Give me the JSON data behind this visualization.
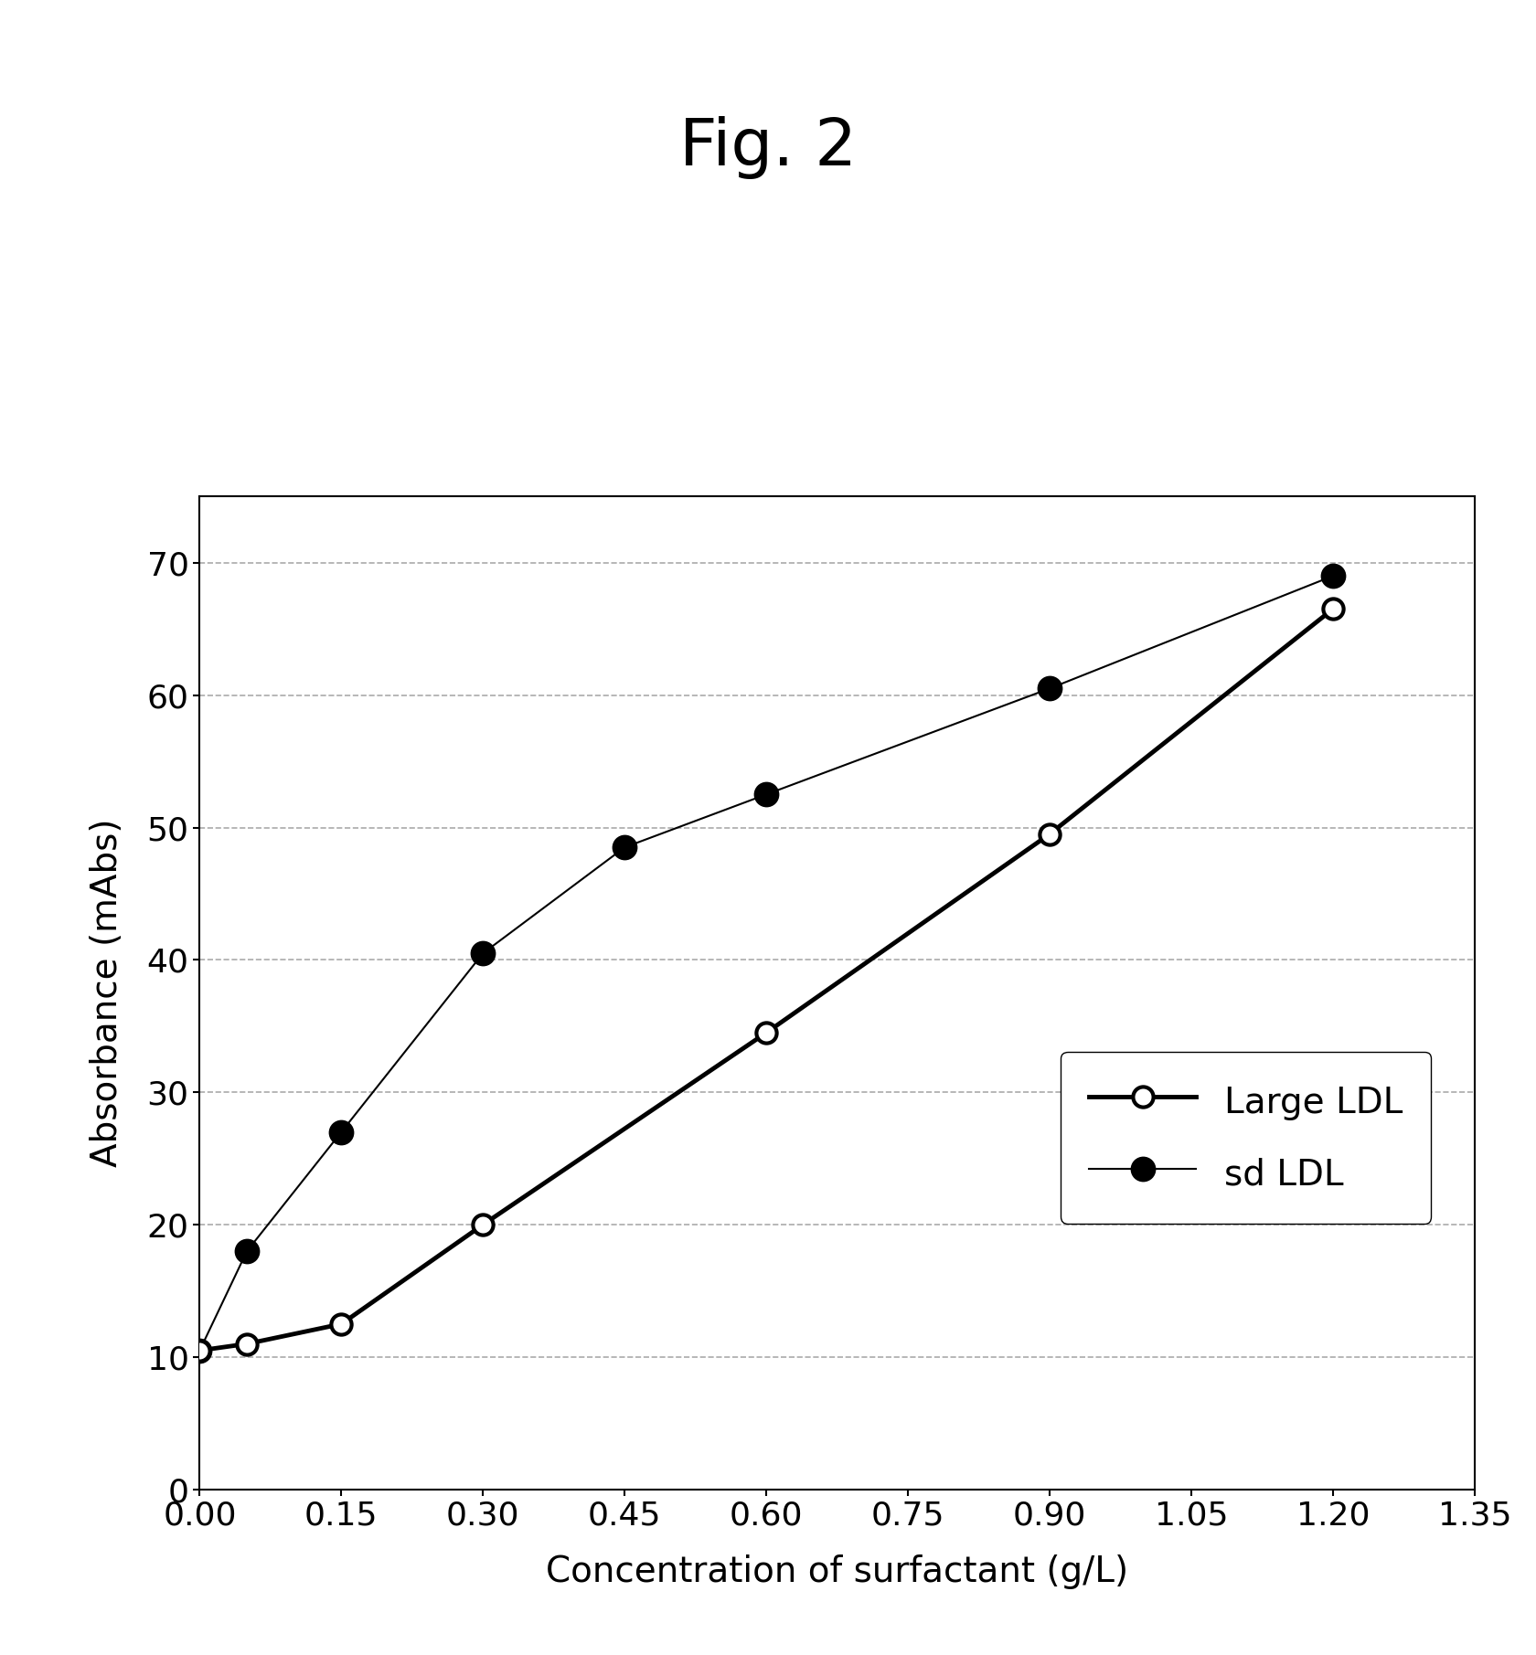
{
  "title": "Fig. 2",
  "xlabel": "Concentration of surfactant (g/L)",
  "ylabel": "Absorbance (mAbs)",
  "large_ldl_x": [
    0.0,
    0.05,
    0.15,
    0.3,
    0.6,
    0.9,
    1.2
  ],
  "large_ldl_y": [
    10.5,
    11.0,
    12.5,
    20.0,
    34.5,
    49.5,
    66.5
  ],
  "sd_ldl_x": [
    0.0,
    0.05,
    0.15,
    0.3,
    0.45,
    0.6,
    0.9,
    1.2
  ],
  "sd_ldl_y": [
    10.5,
    18.0,
    27.0,
    40.5,
    48.5,
    52.5,
    60.5,
    69.0
  ],
  "xlim": [
    0.0,
    1.35
  ],
  "ylim": [
    0,
    75
  ],
  "xticks": [
    0.0,
    0.15,
    0.3,
    0.45,
    0.6,
    0.75,
    0.9,
    1.05,
    1.2,
    1.35
  ],
  "yticks": [
    0,
    10,
    20,
    30,
    40,
    50,
    60,
    70
  ],
  "grid_color": "#aaaaaa",
  "large_ldl_color": "#000000",
  "sd_ldl_color": "#000000",
  "background_color": "#ffffff",
  "title_fontsize": 52,
  "label_fontsize": 28,
  "tick_fontsize": 26,
  "legend_fontsize": 28
}
